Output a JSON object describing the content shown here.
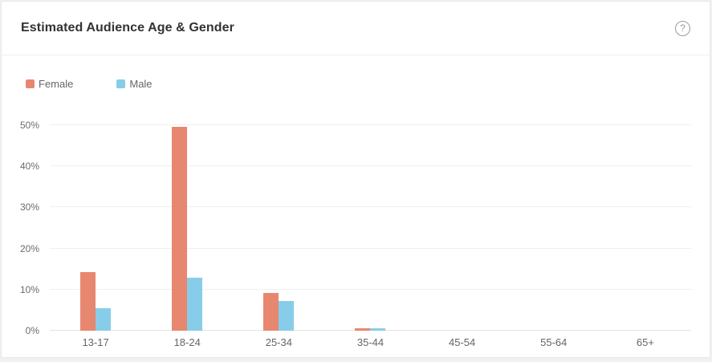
{
  "header": {
    "title": "Estimated Audience Age & Gender",
    "help_icon": "?"
  },
  "colors": {
    "female": "#E8876F",
    "male": "#87CDE9",
    "title_text": "#333333",
    "axis_text": "#666666",
    "gridline": "#f0f0f0",
    "card_border": "#e8e8e8"
  },
  "chart_data": {
    "type": "bar",
    "title": "Estimated Audience Age & Gender",
    "categories": [
      "13-17",
      "18-24",
      "25-34",
      "35-44",
      "45-54",
      "55-64",
      "65+"
    ],
    "series": [
      {
        "name": "Female",
        "color": "#E8876F",
        "values": [
          14.3,
          49.6,
          9.2,
          0.5,
          0,
          0,
          0
        ]
      },
      {
        "name": "Male",
        "color": "#87CDE9",
        "values": [
          5.5,
          12.8,
          7.3,
          0.5,
          0,
          0,
          0
        ]
      }
    ],
    "xlabel": "",
    "ylabel": "",
    "ylim": [
      0,
      50
    ],
    "ytick_values": [
      0,
      10,
      20,
      30,
      40,
      50
    ],
    "ytick_labels": [
      "0%",
      "10%",
      "20%",
      "30%",
      "40%",
      "50%"
    ],
    "grid": true,
    "legend_position": "top-left"
  }
}
